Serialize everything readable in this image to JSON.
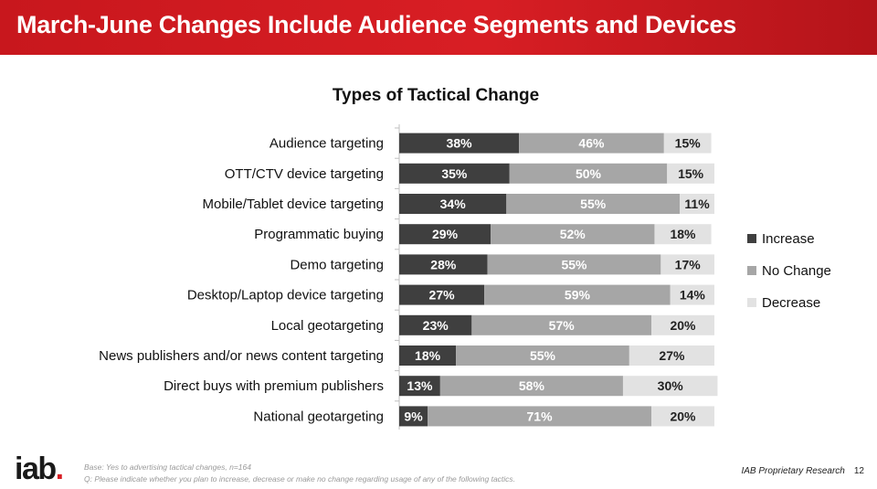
{
  "header": {
    "title": "March-June Changes Include Audience Segments and Devices"
  },
  "colors": {
    "increase": "#3f3f3f",
    "no_change": "#a6a6a6",
    "decrease": "#e2e2e2",
    "brand": "#d81e24"
  },
  "chart_data": {
    "type": "bar",
    "orientation": "horizontal",
    "stacked": true,
    "title": "Types of Tactical Change",
    "categories": [
      "Audience targeting",
      "OTT/CTV device targeting",
      "Mobile/Tablet device targeting",
      "Programmatic buying",
      "Demo targeting",
      "Desktop/Laptop device targeting",
      "Local geotargeting",
      "News publishers and/or news content targeting",
      "Direct buys with premium publishers",
      "National geotargeting"
    ],
    "series": [
      {
        "name": "Increase",
        "values": [
          38,
          35,
          34,
          29,
          28,
          27,
          23,
          18,
          13,
          9
        ]
      },
      {
        "name": "No Change",
        "values": [
          46,
          50,
          55,
          52,
          55,
          59,
          57,
          55,
          58,
          71
        ]
      },
      {
        "name": "Decrease",
        "values": [
          15,
          15,
          11,
          18,
          17,
          14,
          20,
          27,
          30,
          20
        ]
      }
    ],
    "value_suffix": "%",
    "legend_position": "right",
    "grid": false
  },
  "footer": {
    "logo_text": "iab",
    "logo_dot": ".",
    "base_note": "Base: Yes to advertising tactical changes, n=164",
    "question_note": "Q: Please indicate whether you plan to increase, decrease or make no change regarding usage of any of the following tactics.",
    "proprietary": "IAB Proprietary Research",
    "page_number": "12"
  }
}
